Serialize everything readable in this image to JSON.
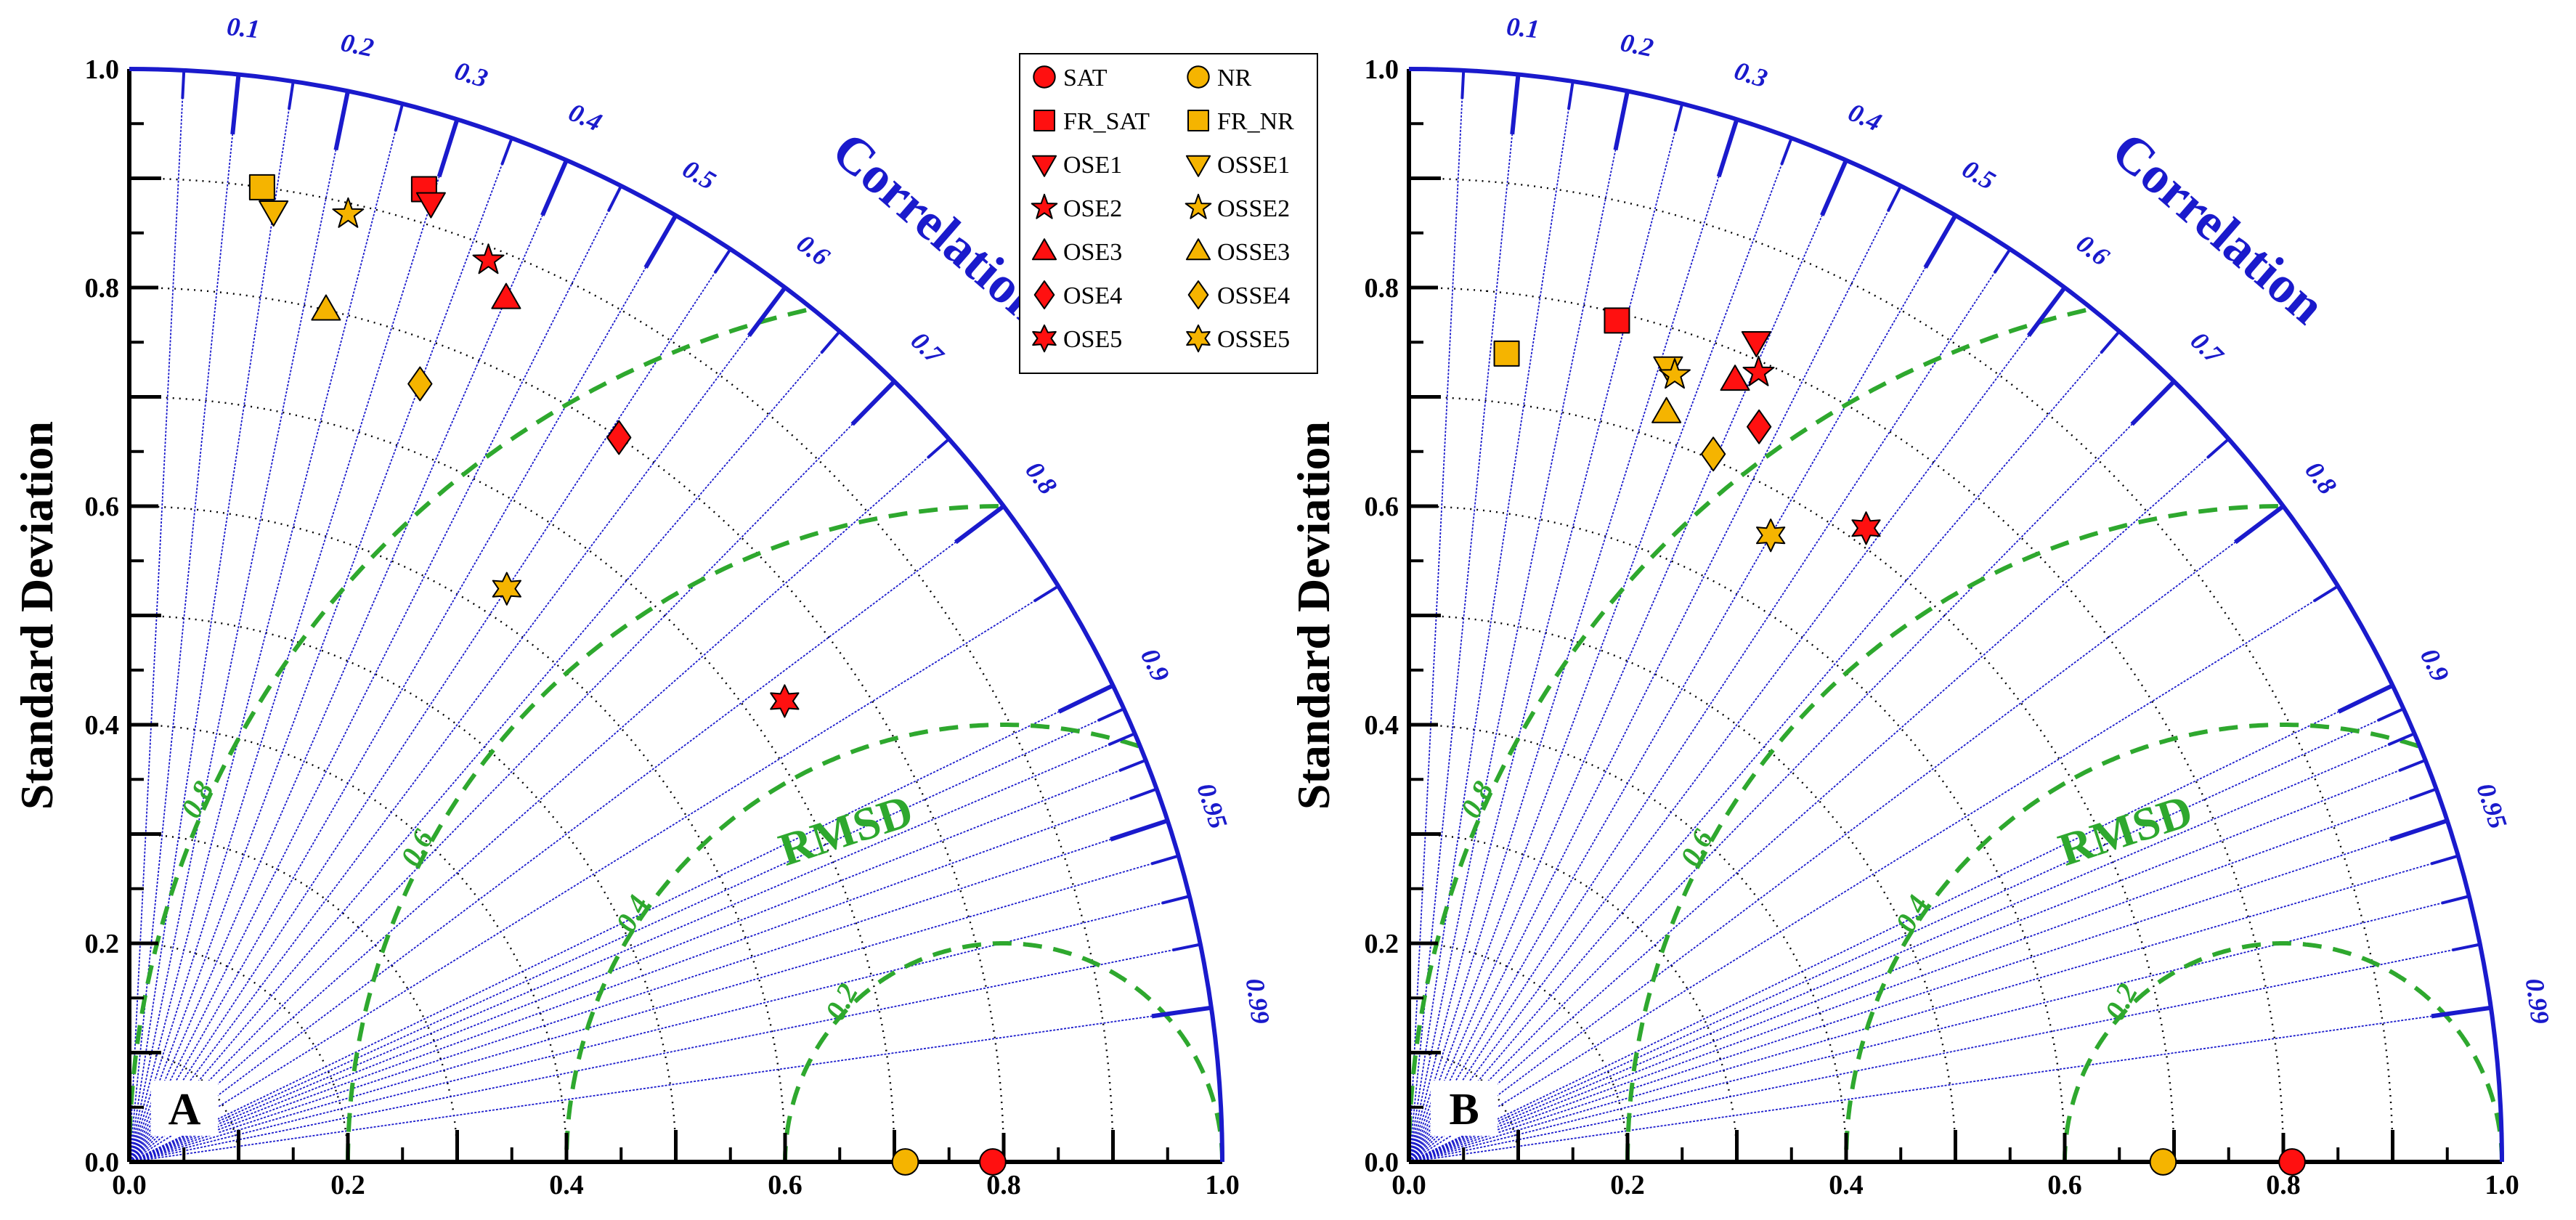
{
  "figure": {
    "type": "taylor_diagram_pair"
  },
  "chart_data": [
    {
      "type": "taylor",
      "panel_label": "A",
      "ylabel": "Standard Deviation",
      "corr_title": "Correlation",
      "rmsd_title": "RMSD",
      "std_ticks": [
        "0.0",
        "0.2",
        "0.4",
        "0.6",
        "0.8",
        "1.0"
      ],
      "std_range": [
        0,
        1.0
      ],
      "corr_ticks": [
        "0.1",
        "0.2",
        "0.3",
        "0.4",
        "0.5",
        "0.6",
        "0.7",
        "0.8",
        "0.9",
        "0.95",
        "0.99"
      ],
      "rmsd_labels": [
        "0.2",
        "0.4",
        "0.6",
        "0.8"
      ],
      "reference_std": 0.8,
      "points": [
        {
          "name": "SAT",
          "std": 0.79,
          "corr": 1.0
        },
        {
          "name": "NR",
          "std": 0.71,
          "corr": 1.0
        },
        {
          "name": "FR_SAT",
          "std": 0.93,
          "corr": 0.29
        },
        {
          "name": "FR_NR",
          "std": 0.9,
          "corr": 0.135
        },
        {
          "name": "OSE1",
          "std": 0.92,
          "corr": 0.3
        },
        {
          "name": "OSSE1",
          "std": 0.88,
          "corr": 0.15
        },
        {
          "name": "OSE2",
          "std": 0.888,
          "corr": 0.37
        },
        {
          "name": "OSSE2",
          "std": 0.89,
          "corr": 0.225
        },
        {
          "name": "OSE3",
          "std": 0.862,
          "corr": 0.4
        },
        {
          "name": "OSSE3",
          "std": 0.8,
          "corr": 0.225
        },
        {
          "name": "OSE4",
          "std": 0.8,
          "corr": 0.56
        },
        {
          "name": "OSSE4",
          "std": 0.76,
          "corr": 0.35
        },
        {
          "name": "OSE5",
          "std": 0.733,
          "corr": 0.818
        },
        {
          "name": "OSSE5",
          "std": 0.628,
          "corr": 0.55
        }
      ]
    },
    {
      "type": "taylor",
      "panel_label": "B",
      "ylabel": "Standard Deviation",
      "corr_title": "Correlation",
      "rmsd_title": "RMSD",
      "std_ticks": [
        "0.0",
        "0.2",
        "0.4",
        "0.6",
        "0.8",
        "1.0"
      ],
      "std_range": [
        0,
        1.0
      ],
      "corr_ticks": [
        "0.1",
        "0.2",
        "0.3",
        "0.4",
        "0.5",
        "0.6",
        "0.7",
        "0.8",
        "0.9",
        "0.95",
        "0.99"
      ],
      "rmsd_labels": [
        "0.2",
        "0.4",
        "0.6",
        "0.8"
      ],
      "reference_std": 0.8,
      "points": [
        {
          "name": "SAT",
          "std": 0.808,
          "corr": 1.0
        },
        {
          "name": "NR",
          "std": 0.69,
          "corr": 1.0
        },
        {
          "name": "FR_SAT",
          "std": 0.793,
          "corr": 0.24
        },
        {
          "name": "FR_NR",
          "std": 0.745,
          "corr": 0.12
        },
        {
          "name": "OSE1",
          "std": 0.815,
          "corr": 0.39
        },
        {
          "name": "OSSE1",
          "std": 0.765,
          "corr": 0.31
        },
        {
          "name": "OSE2",
          "std": 0.79,
          "corr": 0.405
        },
        {
          "name": "OSSE2",
          "std": 0.76,
          "corr": 0.32
        },
        {
          "name": "OSE3",
          "std": 0.775,
          "corr": 0.385
        },
        {
          "name": "OSSE3",
          "std": 0.725,
          "corr": 0.325
        },
        {
          "name": "OSE4",
          "std": 0.745,
          "corr": 0.43
        },
        {
          "name": "OSSE4",
          "std": 0.705,
          "corr": 0.395
        },
        {
          "name": "OSE5",
          "std": 0.715,
          "corr": 0.585
        },
        {
          "name": "OSSE5",
          "std": 0.662,
          "corr": 0.5
        }
      ]
    }
  ],
  "legend": {
    "entries": [
      {
        "label": "SAT",
        "marker": "circle",
        "color": "#ff1010"
      },
      {
        "label": "NR",
        "marker": "circle",
        "color": "#f5b400"
      },
      {
        "label": "FR_SAT",
        "marker": "square",
        "color": "#ff1010"
      },
      {
        "label": "FR_NR",
        "marker": "square",
        "color": "#f5b400"
      },
      {
        "label": "OSE1",
        "marker": "triangle-down",
        "color": "#ff1010"
      },
      {
        "label": "OSSE1",
        "marker": "triangle-down",
        "color": "#f5b400"
      },
      {
        "label": "OSE2",
        "marker": "star5",
        "color": "#ff1010"
      },
      {
        "label": "OSSE2",
        "marker": "star5",
        "color": "#f5b400"
      },
      {
        "label": "OSE3",
        "marker": "triangle-up",
        "color": "#ff1010"
      },
      {
        "label": "OSSE3",
        "marker": "triangle-up",
        "color": "#f5b400"
      },
      {
        "label": "OSE4",
        "marker": "diamond",
        "color": "#ff1010"
      },
      {
        "label": "OSSE4",
        "marker": "diamond",
        "color": "#f5b400"
      },
      {
        "label": "OSE5",
        "marker": "star6",
        "color": "#ff1010"
      },
      {
        "label": "OSSE5",
        "marker": "star6",
        "color": "#f5b400"
      }
    ]
  },
  "colors": {
    "axis": "#1a1acc",
    "rmsd": "#2ea82e",
    "grid": "#000000",
    "red": "#ff1010",
    "gold": "#f5b400"
  }
}
